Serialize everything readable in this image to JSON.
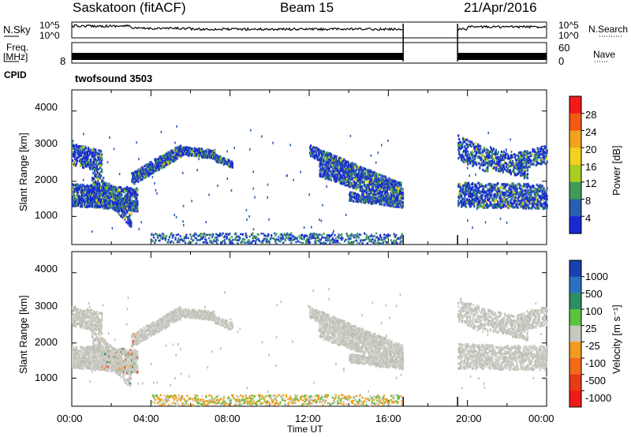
{
  "header": {
    "station": "Saskatoon (fitACF)",
    "beam": "Beam 15",
    "date": "21/Apr/2016"
  },
  "strip": {
    "nsky_label": "N.Sky",
    "nsky_ticks": [
      "10^5",
      "10^0"
    ],
    "nsearch_label": "N.Search",
    "nsearch_ticks": [
      "10^5",
      "10^0"
    ],
    "freq_label_1": "Freq.",
    "freq_label_2": "[MHz]",
    "freq_ticks": [
      "8"
    ],
    "nave_label": "Nave",
    "nave_ticks": [
      "60",
      "0"
    ],
    "cpid_label": "CPID",
    "cpid_value": "twofsound 3503"
  },
  "legend_power": {
    "label": "Power [dB]",
    "ticks": [
      "28",
      "24",
      "20",
      "16",
      "12",
      "8",
      "4"
    ],
    "colors": [
      "#f21a1a",
      "#f25a14",
      "#f2a21c",
      "#f2d21e",
      "#a8cc22",
      "#3f9a5a",
      "#2a5fb0",
      "#1a28d2"
    ]
  },
  "legend_velocity": {
    "label": "Velocity [m s⁻¹]",
    "ticks": [
      "1000",
      "500",
      "100",
      "25",
      "-25",
      "-100",
      "-500",
      "-1000"
    ],
    "colors": [
      "#1a3fae",
      "#2a72c0",
      "#2c8f62",
      "#5bc23e",
      "#c8c8c0",
      "#f29a22",
      "#f26a1a",
      "#e83a16",
      "#f01a1a"
    ]
  },
  "chart_data": [
    {
      "type": "heatmap",
      "ylabel": "Slant Range [km]",
      "y_ticks": [
        "4000",
        "3000",
        "2000",
        "1000"
      ],
      "ylim": [
        200,
        4600
      ],
      "xlim": [
        "00:00",
        "24:00"
      ],
      "data_gap": [
        "16:45",
        "19:30"
      ],
      "colorbar": "Power [dB]"
    },
    {
      "type": "heatmap",
      "ylabel": "Slant Range [km]",
      "y_ticks": [
        "4000",
        "3000",
        "2000",
        "1000"
      ],
      "ylim": [
        200,
        4600
      ],
      "xlim": [
        "00:00",
        "24:00"
      ],
      "data_gap": [
        "16:45",
        "19:30"
      ],
      "colorbar": "Velocity [m s⁻¹]"
    }
  ],
  "xaxis": {
    "ticks": [
      "00:00",
      "04:00",
      "08:00",
      "12:00",
      "16:00",
      "20:00",
      "00:00"
    ],
    "label": "Time UT"
  }
}
